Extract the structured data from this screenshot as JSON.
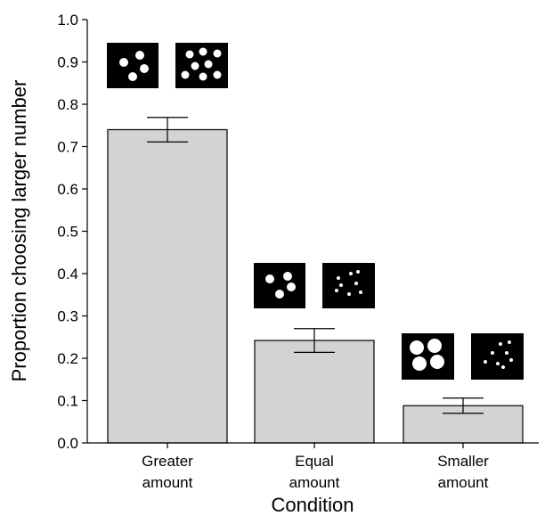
{
  "chart_data": {
    "type": "bar",
    "categories": [
      [
        "Greater",
        "amount"
      ],
      [
        "Equal",
        "amount"
      ],
      [
        "Smaller",
        "amount"
      ]
    ],
    "values": [
      0.74,
      0.242,
      0.088
    ],
    "error_bars": [
      0.029,
      0.028,
      0.018
    ],
    "xlabel": "Condition",
    "ylabel": "Proportion choosing larger number",
    "ylim": [
      0,
      1.0
    ],
    "yticks": [
      "0.0",
      "0.1",
      "0.2",
      "0.3",
      "0.4",
      "0.5",
      "0.6",
      "0.7",
      "0.8",
      "0.9",
      "1.0"
    ],
    "grid": false,
    "legend": "none",
    "bar_color": "#d3d3d3",
    "bar_edge_color": "#000000",
    "stimulus_icons": [
      {
        "left_dots": "four medium dots",
        "right_dots": "eight medium dots"
      },
      {
        "left_dots": "four medium dots",
        "right_dots": "eight small dots"
      },
      {
        "left_dots": "four large dots",
        "right_dots": "eight small dots"
      }
    ]
  }
}
